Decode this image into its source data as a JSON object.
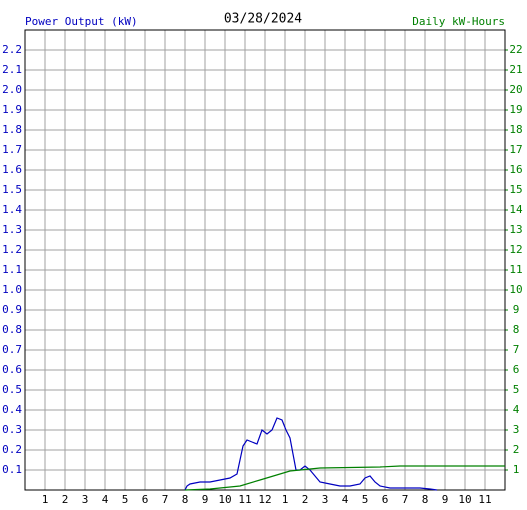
{
  "chart_data": {
    "type": "line",
    "title": "03/28/2024",
    "ylabel": "Power Output (kW)",
    "y2label": "Daily kW-Hours",
    "xlim": [
      0,
      24
    ],
    "ylim": [
      0,
      2.3
    ],
    "y2lim": [
      0,
      23
    ],
    "grid": true,
    "xticks": [
      1,
      2,
      3,
      4,
      5,
      6,
      7,
      8,
      9,
      10,
      11,
      12,
      {
        "value": 13,
        "label": "1"
      },
      {
        "value": 14,
        "label": "2"
      },
      {
        "value": 15,
        "label": "3"
      },
      {
        "value": 16,
        "label": "4"
      },
      {
        "value": 17,
        "label": "5"
      },
      {
        "value": 18,
        "label": "6"
      },
      {
        "value": 19,
        "label": "7"
      },
      {
        "value": 20,
        "label": "8"
      },
      {
        "value": 21,
        "label": "9"
      },
      {
        "value": 22,
        "label": "10"
      },
      {
        "value": 23,
        "label": "11"
      }
    ],
    "yticks": [
      0.1,
      0.2,
      0.3,
      0.4,
      0.5,
      0.6,
      0.7,
      0.8,
      0.9,
      {
        "value": 1.0,
        "label": "1.0"
      },
      1.1,
      1.2,
      1.3,
      1.4,
      1.5,
      1.6,
      1.7,
      1.8,
      1.9,
      {
        "value": 2.0,
        "label": "2.0"
      },
      2.1,
      2.2
    ],
    "y2ticks": [
      1,
      2,
      3,
      4,
      5,
      6,
      7,
      8,
      9,
      10,
      11,
      12,
      13,
      14,
      15,
      16,
      17,
      18,
      19,
      20,
      21,
      22
    ],
    "series": [
      {
        "name": "Power Output",
        "color": "#0000c0",
        "x": [
          8.0,
          8.1,
          8.25,
          8.75,
          9.25,
          9.75,
          10.25,
          10.6,
          10.75,
          10.9,
          11.1,
          11.35,
          11.6,
          11.85,
          12.1,
          12.35,
          12.6,
          12.85,
          13.05,
          13.25,
          13.4,
          13.55,
          13.75,
          14.0,
          14.25,
          14.5,
          14.75,
          15.25,
          15.75,
          16.25,
          16.75,
          17.0,
          17.25,
          17.5,
          17.75,
          18.25,
          18.75,
          19.25,
          19.75,
          20.25,
          20.6
        ],
        "values": [
          0.0,
          0.02,
          0.03,
          0.04,
          0.04,
          0.05,
          0.06,
          0.08,
          0.15,
          0.22,
          0.25,
          0.24,
          0.23,
          0.3,
          0.28,
          0.3,
          0.36,
          0.35,
          0.3,
          0.26,
          0.18,
          0.1,
          0.1,
          0.12,
          0.1,
          0.07,
          0.04,
          0.03,
          0.02,
          0.02,
          0.03,
          0.06,
          0.07,
          0.04,
          0.02,
          0.01,
          0.01,
          0.01,
          0.01,
          0.005,
          0.0
        ]
      },
      {
        "name": "Daily kW-Hours",
        "color": "#008000",
        "axis": "y2",
        "x": [
          8.0,
          9.25,
          10.75,
          11.75,
          12.75,
          13.25,
          13.75,
          14.75,
          17.75,
          18.75,
          24.0
        ],
        "values": [
          0.0,
          0.05,
          0.2,
          0.5,
          0.8,
          0.95,
          1.0,
          1.1,
          1.15,
          1.2,
          1.2
        ]
      }
    ]
  }
}
